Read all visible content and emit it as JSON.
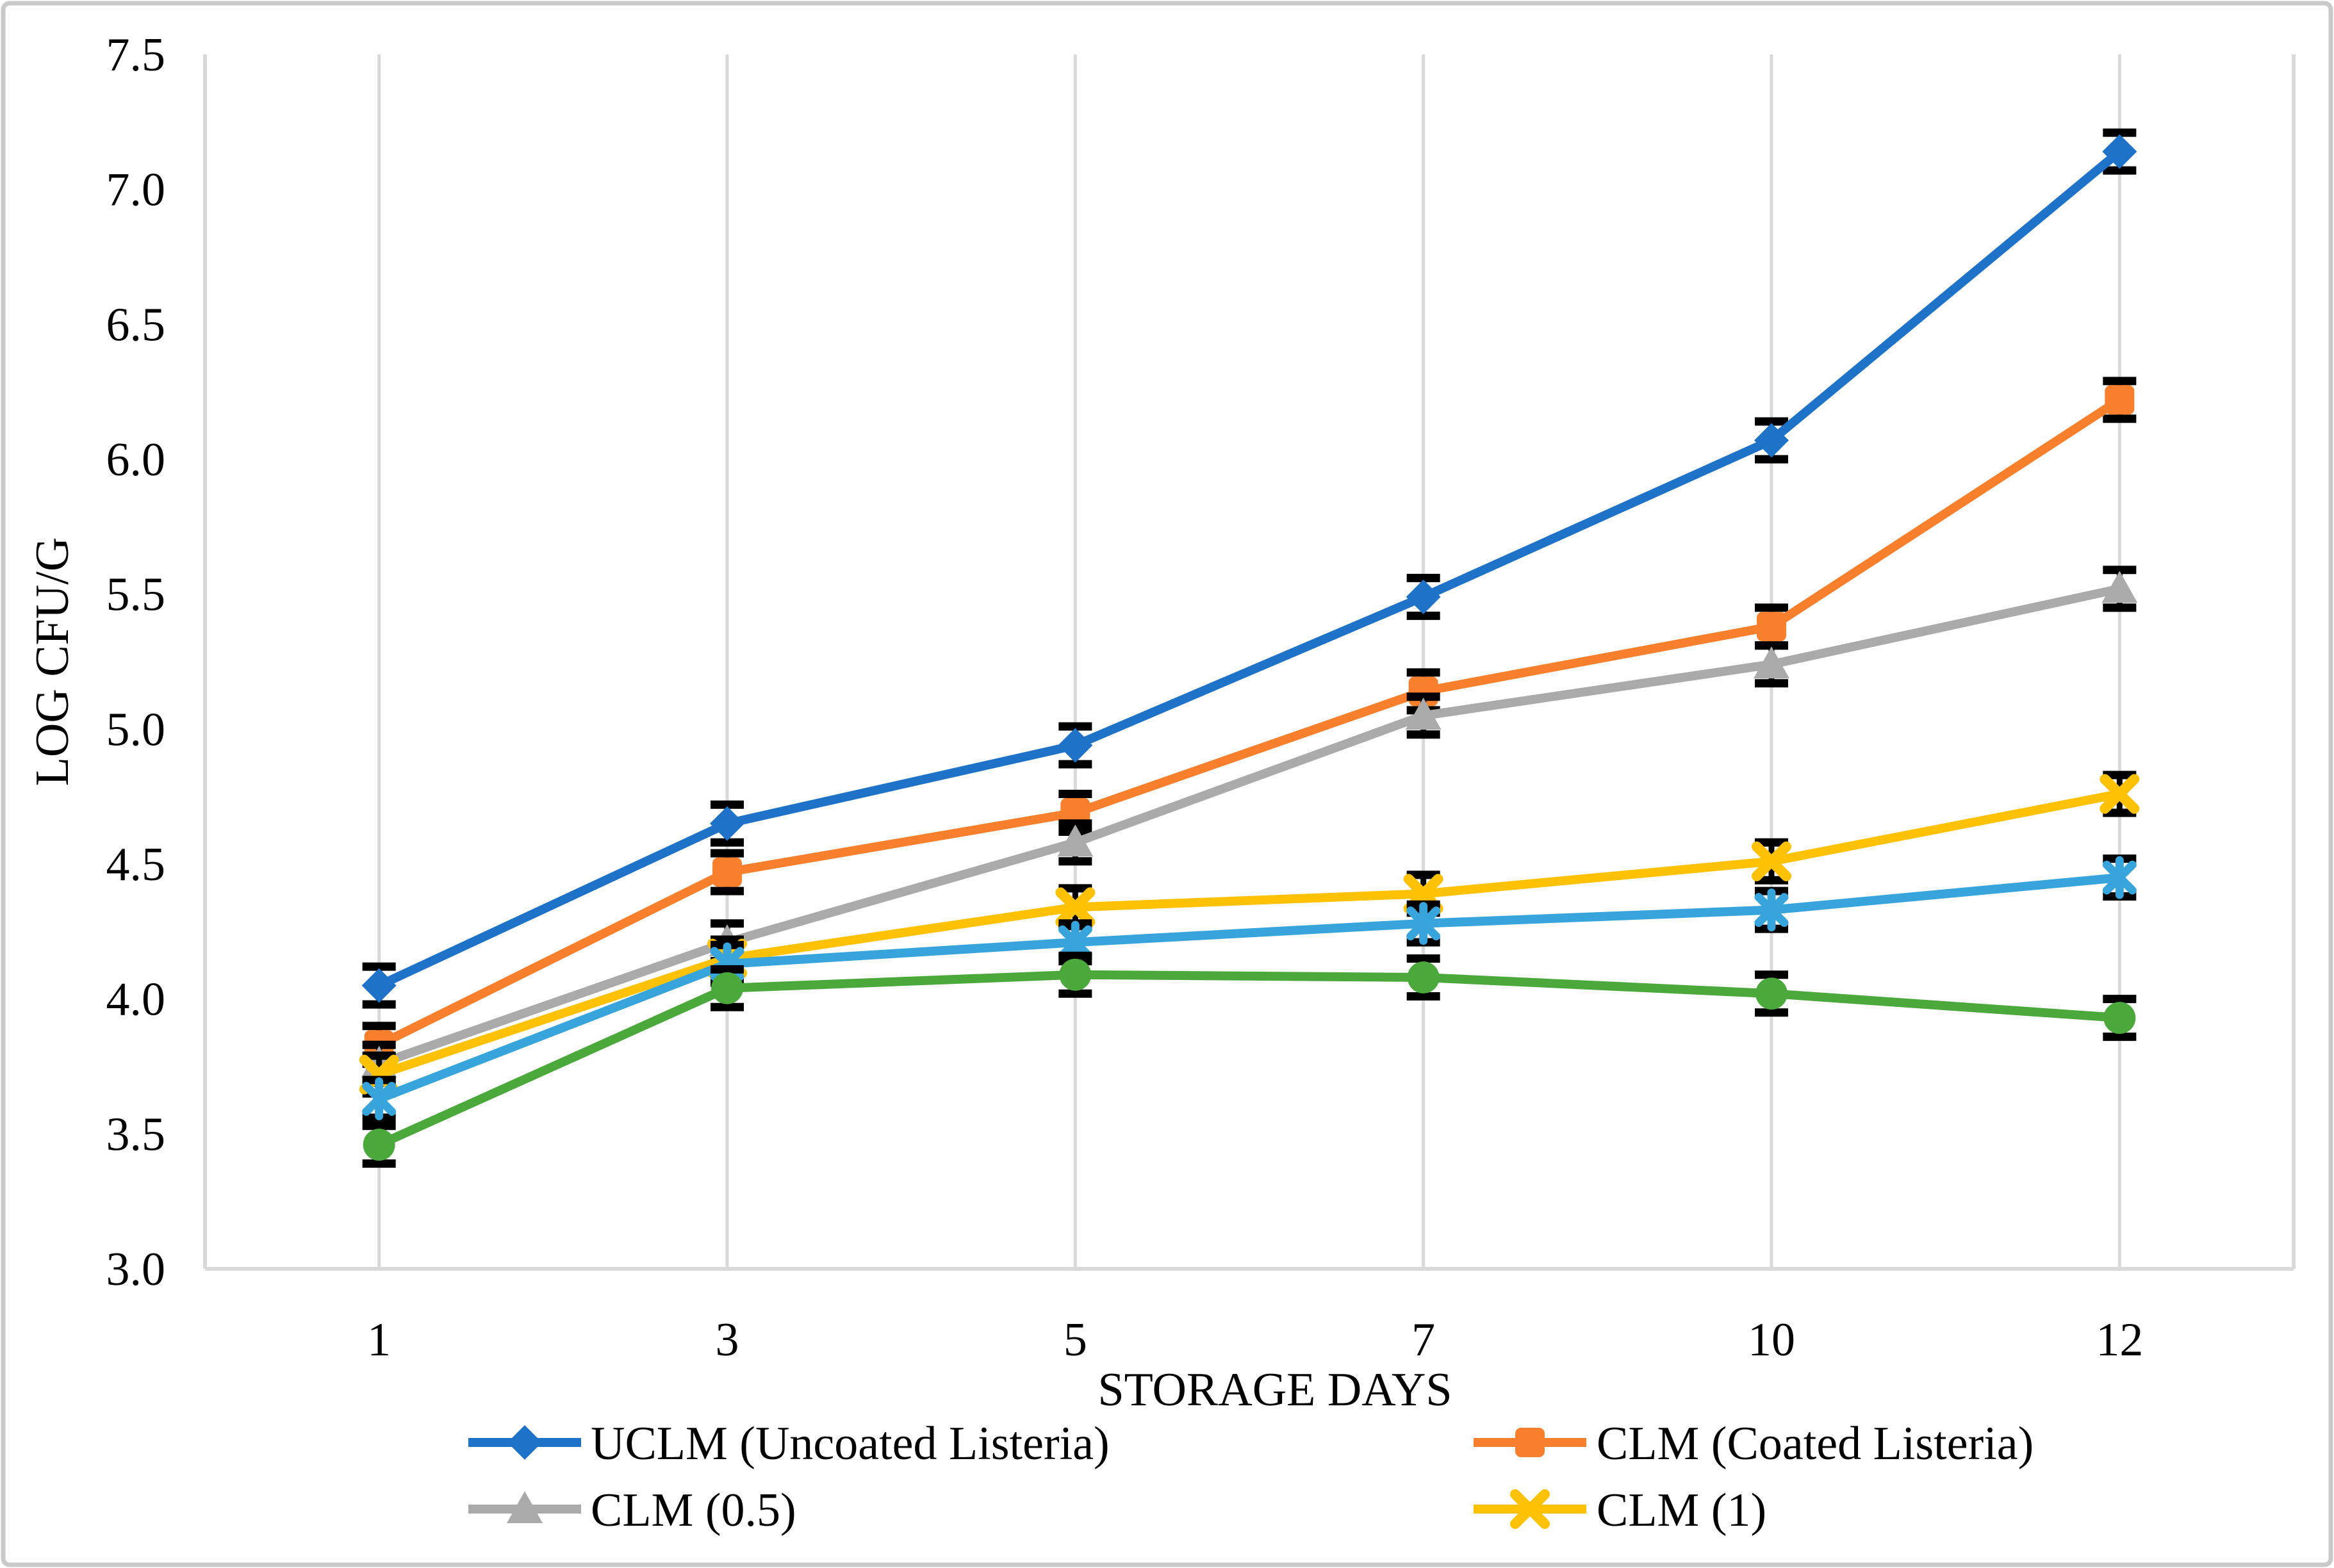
{
  "chart_data": {
    "type": "line",
    "title": "",
    "x_axis": {
      "label": "STORAGE DAYS",
      "tick_labels": [
        "1",
        "3",
        "5",
        "7",
        "10",
        "12"
      ]
    },
    "y_axis": {
      "label": "LOG CFU/G",
      "tick_labels": [
        "3.0",
        "3.5",
        "4.0",
        "4.5",
        "5.0",
        "5.5",
        "6.0",
        "6.5",
        "7.0",
        "7.5"
      ],
      "range": [
        3.0,
        7.5
      ]
    },
    "grid": "vertical-only",
    "x": [
      1,
      3,
      5,
      7,
      10,
      12
    ],
    "error_bar_half_height": 0.07,
    "series": [
      {
        "name": "UCLM (Uncoated Listeria)",
        "color": "#1E73C8",
        "marker": "diamond",
        "in_legend": true,
        "values": [
          4.05,
          4.65,
          4.94,
          5.49,
          6.07,
          7.14
        ]
      },
      {
        "name": "CLM (Coated Listeria)",
        "color": "#F8802D",
        "marker": "square",
        "in_legend": true,
        "values": [
          3.83,
          4.47,
          4.69,
          5.14,
          5.38,
          6.22
        ]
      },
      {
        "name": "CLM (0.5)",
        "color": "#AAAAAA",
        "marker": "triangle",
        "in_legend": true,
        "values": [
          3.76,
          4.21,
          4.58,
          5.05,
          5.24,
          5.52
        ]
      },
      {
        "name": "CLM (1)",
        "color": "#FFC103",
        "marker": "x",
        "in_legend": true,
        "values": [
          3.72,
          4.15,
          4.34,
          4.39,
          4.51,
          4.76
        ]
      },
      {
        "name": "",
        "color": "#38A4DC",
        "marker": "asterisk",
        "in_legend": false,
        "values": [
          3.63,
          4.13,
          4.21,
          4.28,
          4.33,
          4.45
        ]
      },
      {
        "name": "",
        "color": "#4BA83B",
        "marker": "circle",
        "in_legend": false,
        "values": [
          3.46,
          4.04,
          4.09,
          4.08,
          4.02,
          3.93
        ]
      }
    ],
    "legend": {
      "position": "bottom",
      "columns": 2,
      "entries": [
        "UCLM (Uncoated Listeria)",
        "CLM (Coated Listeria)",
        "CLM (0.5)",
        "CLM (1)"
      ]
    },
    "colors": {
      "gridline": "#D9D9D9",
      "axis_line": "#D9D9D9",
      "error_bar": "#000000",
      "text": "#000000",
      "border": "#C9C9C9",
      "background": "#FFFFFF"
    }
  }
}
